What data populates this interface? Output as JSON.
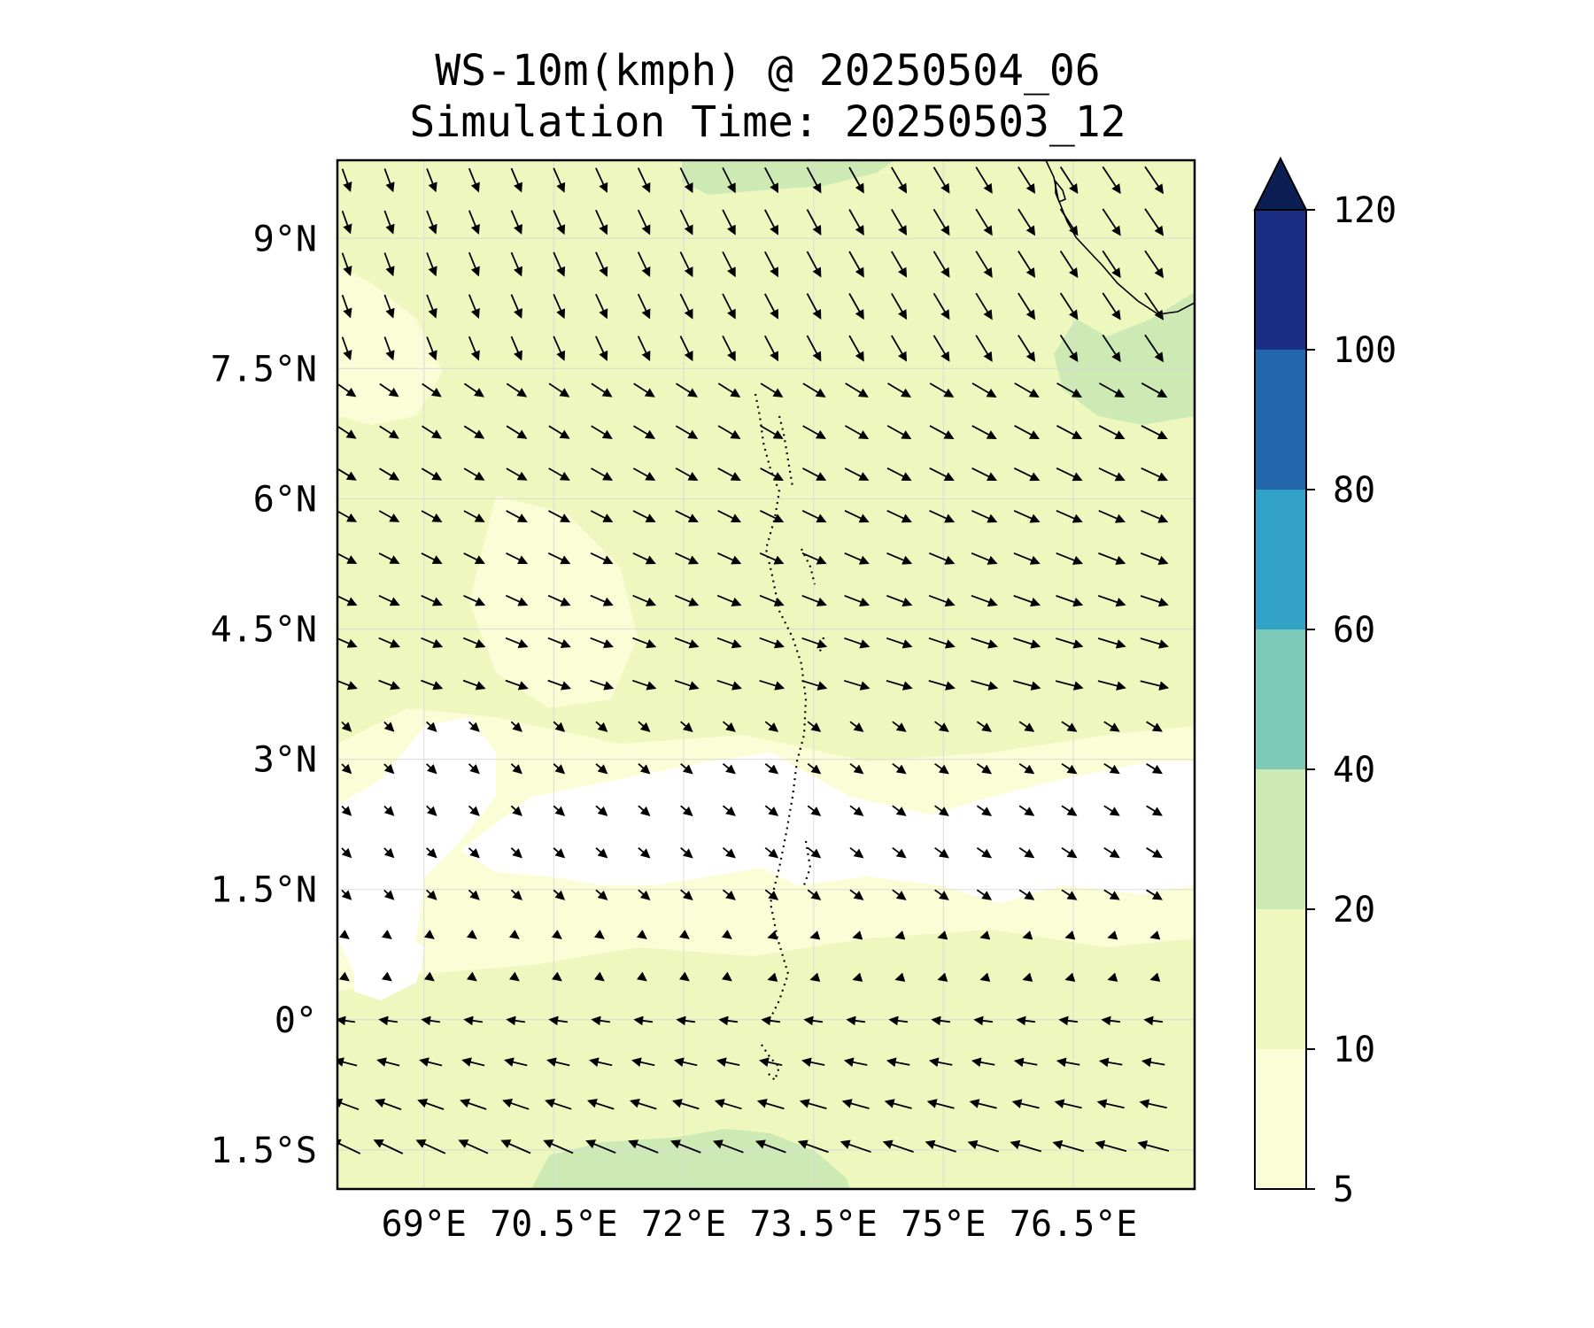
{
  "title": {
    "line1": "WS-10m(kmph) @ 20250504_06",
    "line2": "Simulation Time: 20250503_12"
  },
  "map": {
    "lon_range": [
      68.0,
      77.9
    ],
    "lat_range": [
      -1.95,
      9.9
    ],
    "x_ticks": [
      {
        "value": 69.0,
        "label": "69°E"
      },
      {
        "value": 70.5,
        "label": "70.5°E"
      },
      {
        "value": 72.0,
        "label": "72°E"
      },
      {
        "value": 73.5,
        "label": "73.5°E"
      },
      {
        "value": 75.0,
        "label": "75°E"
      },
      {
        "value": 76.5,
        "label": "76.5°E"
      }
    ],
    "y_ticks": [
      {
        "value": 9.0,
        "label": "9°N"
      },
      {
        "value": 7.5,
        "label": "7.5°N"
      },
      {
        "value": 6.0,
        "label": "6°N"
      },
      {
        "value": 4.5,
        "label": "4.5°N"
      },
      {
        "value": 3.0,
        "label": "3°N"
      },
      {
        "value": 1.5,
        "label": "1.5°N"
      },
      {
        "value": 0.0,
        "label": "0°"
      },
      {
        "value": -1.5,
        "label": "1.5°S"
      }
    ],
    "grid": true,
    "colors": {
      "lt5": "#ffffff",
      "5-10": "#fbfdd6",
      "10-20": "#eef8be",
      "20-40": "#cde9b4"
    }
  },
  "colorbar": {
    "levels": [
      5,
      10,
      20,
      40,
      60,
      80,
      100,
      120
    ],
    "colors": [
      "#fbfdd6",
      "#eef8be",
      "#cde9b4",
      "#7ecab9",
      "#32a3c6",
      "#2366ac",
      "#1c2e83"
    ],
    "extend_color": "#0c1f55",
    "extend": "max"
  }
}
